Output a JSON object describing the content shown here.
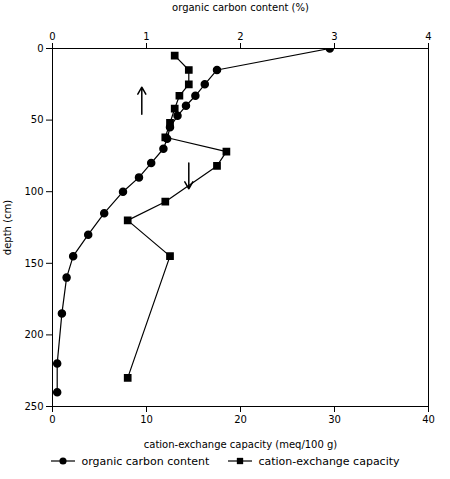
{
  "chart_data": {
    "type": "line",
    "xlabel": "cation-exchange capacity (meq/100 g)",
    "x2label": "organic carbon content (%)",
    "ylabel": "depth (cm)",
    "xlim": [
      0,
      40
    ],
    "xticks": [
      0,
      10,
      20,
      30,
      40
    ],
    "x2lim": [
      0,
      4
    ],
    "x2ticks": [
      0,
      1,
      2,
      3,
      4
    ],
    "ylim": [
      250,
      0
    ],
    "yticks": [
      0,
      50,
      100,
      150,
      200,
      250
    ],
    "series": [
      {
        "name": "organic carbon content",
        "axis": "x2",
        "color": "#000000",
        "marker": "circle",
        "line_style": "solid",
        "x": [
          2.95,
          1.75,
          1.62,
          1.52,
          1.42,
          1.33,
          1.25,
          1.22,
          1.18,
          1.05,
          0.92,
          0.75,
          0.55,
          0.38,
          0.22,
          0.15,
          0.1,
          0.05,
          0.05
        ],
        "y": [
          0,
          15,
          25,
          33,
          40,
          47,
          55,
          63,
          70,
          80,
          90,
          100,
          115,
          130,
          145,
          160,
          185,
          220,
          240
        ]
      },
      {
        "name": "cation-exchange capacity",
        "axis": "x",
        "color": "#000000",
        "marker": "square",
        "line_style": "solid",
        "x": [
          13.0,
          14.5,
          14.5,
          13.5,
          13.0,
          12.5,
          12.0,
          18.5,
          17.5,
          12.0,
          8.0,
          12.5,
          8.0
        ],
        "y": [
          5,
          15,
          25,
          33,
          42,
          52,
          62,
          72,
          82,
          107,
          120,
          145,
          230
        ]
      }
    ],
    "arrows": [
      {
        "x": 9.5,
        "y_start": 46,
        "y_end": 27
      },
      {
        "x": 14.5,
        "y_start": 80,
        "y_end": 98
      }
    ],
    "legend": "bottom",
    "grid": false
  }
}
